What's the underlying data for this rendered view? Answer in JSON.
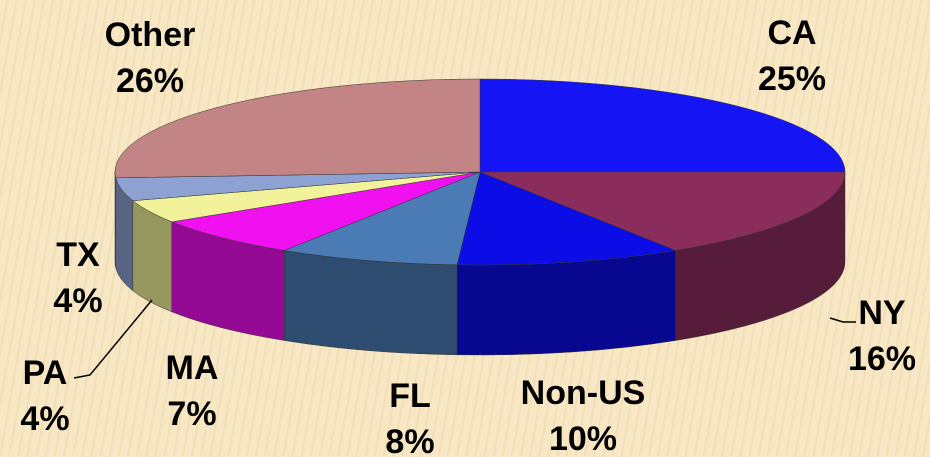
{
  "chart_data": {
    "type": "pie3d",
    "categories": [
      "CA",
      "NY",
      "Non-US",
      "FL",
      "MA",
      "PA",
      "TX",
      "Other"
    ],
    "values": [
      25,
      16,
      10,
      8,
      7,
      4,
      4,
      26
    ],
    "value_labels": [
      "25%",
      "16%",
      "10%",
      "8%",
      "7%",
      "4%",
      "4%",
      "26%"
    ],
    "colors": [
      "#1414f5",
      "#8b2d5c",
      "#0c0ce6",
      "#4a7bb4",
      "#f010f0",
      "#f2f29a",
      "#8da2d2",
      "#c28484"
    ]
  }
}
